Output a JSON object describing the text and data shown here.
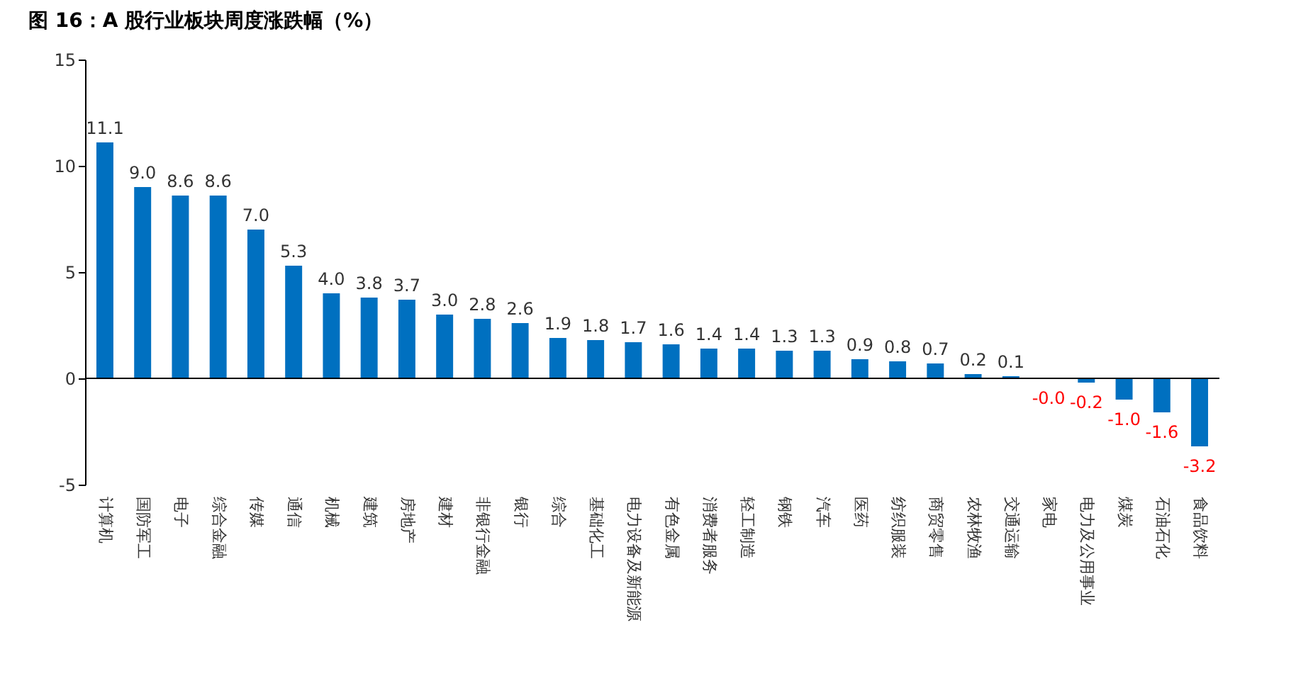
{
  "chart_data": {
    "type": "bar",
    "title": "图 16：A 股行业板块周度涨跌幅（%）",
    "categories": [
      "计算机",
      "国防军工",
      "电子",
      "综合金融",
      "传媒",
      "通信",
      "机械",
      "建筑",
      "房地产",
      "建材",
      "非银行金融",
      "银行",
      "综合",
      "基础化工",
      "电力设备及新能源",
      "有色金属",
      "消费者服务",
      "轻工制造",
      "钢铁",
      "汽车",
      "医药",
      "纺织服装",
      "商贸零售",
      "农林牧渔",
      "交通运输",
      "家电",
      "电力及公用事业",
      "煤炭",
      "石油石化",
      "食品饮料"
    ],
    "values": [
      11.1,
      9.0,
      8.6,
      8.6,
      7.0,
      5.3,
      4.0,
      3.8,
      3.7,
      3.0,
      2.8,
      2.6,
      1.9,
      1.8,
      1.7,
      1.6,
      1.4,
      1.4,
      1.3,
      1.3,
      0.9,
      0.8,
      0.7,
      0.2,
      0.1,
      -0.0,
      -0.2,
      -1.0,
      -1.6,
      -3.2
    ],
    "value_labels": [
      "11.1",
      "9.0",
      "8.6",
      "8.6",
      "7.0",
      "5.3",
      "4.0",
      "3.8",
      "3.7",
      "3.0",
      "2.8",
      "2.6",
      "1.9",
      "1.8",
      "1.7",
      "1.6",
      "1.4",
      "1.4",
      "1.3",
      "1.3",
      "0.9",
      "0.8",
      "0.7",
      "0.2",
      "0.1",
      "-0.0",
      "-0.2",
      "-1.0",
      "-1.6",
      "-3.2"
    ],
    "color": "#0070c0",
    "ylim": [
      -5,
      15
    ],
    "yticks": [
      -5,
      0,
      5,
      10,
      15
    ],
    "ref_lines": [
      {
        "axis": "y",
        "value": 0
      }
    ]
  }
}
